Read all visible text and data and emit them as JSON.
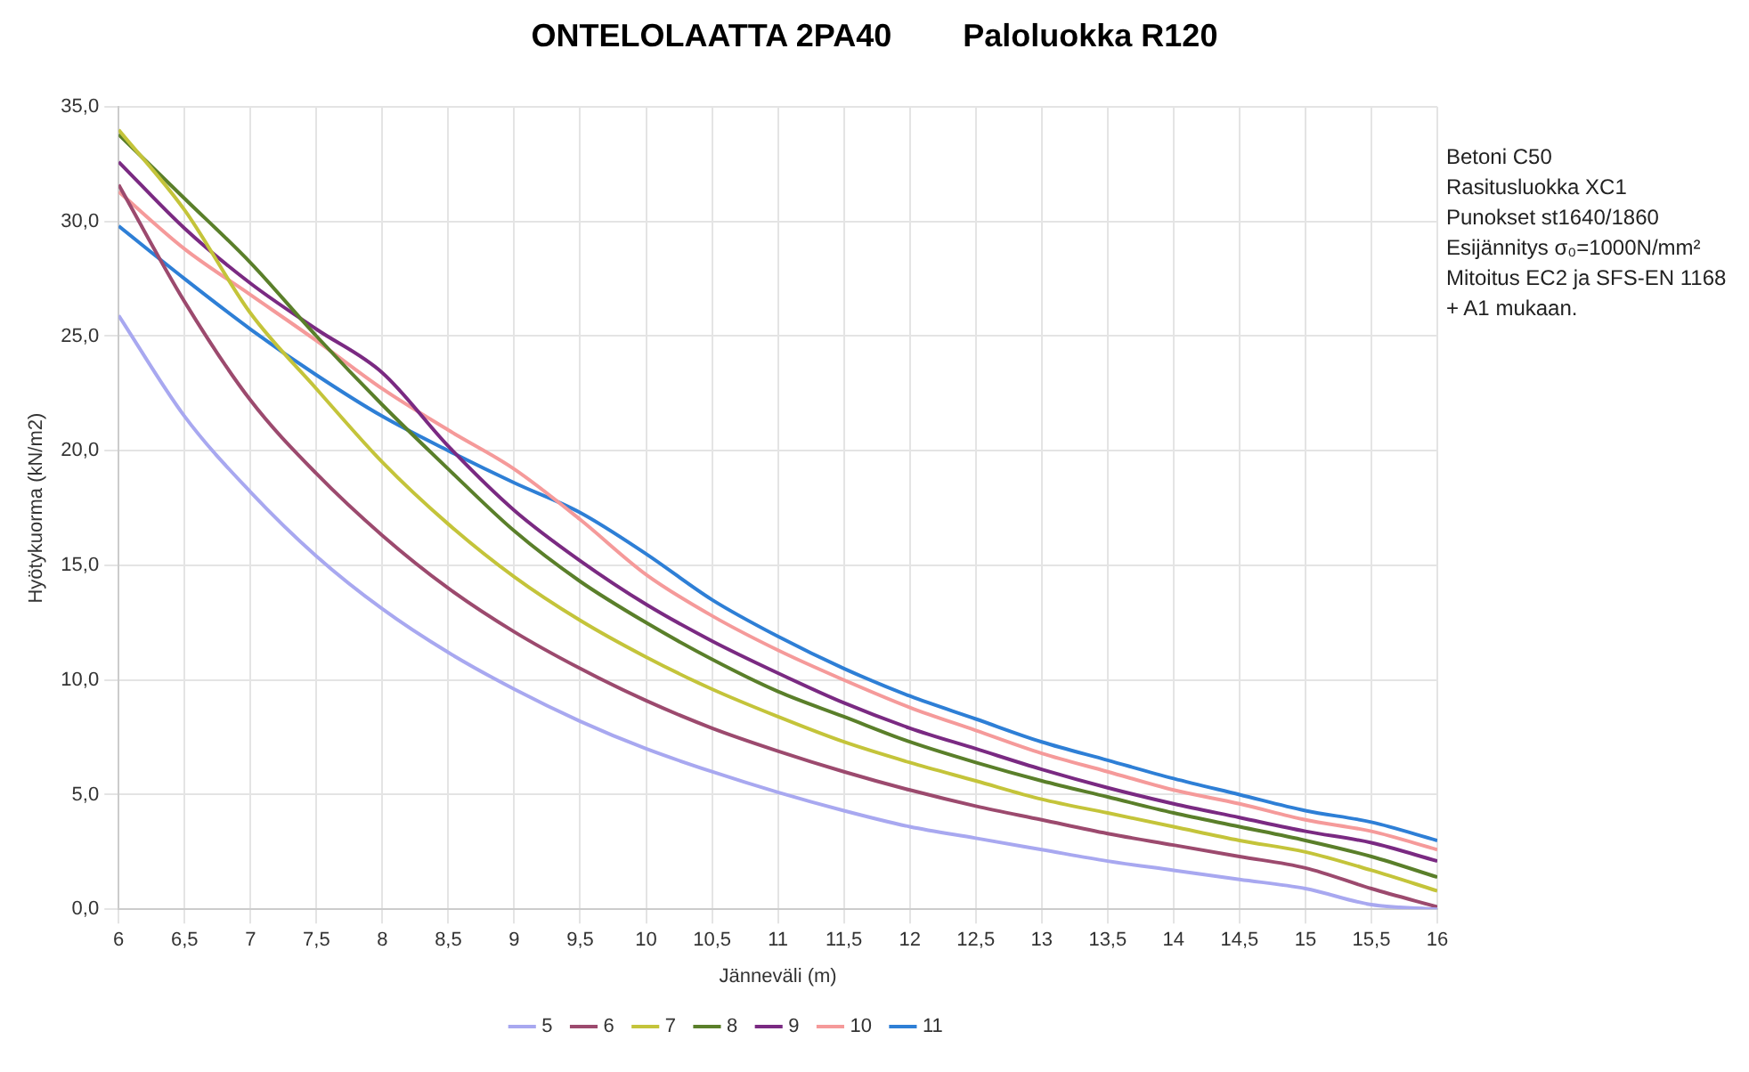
{
  "chart_data": {
    "type": "line",
    "title": "ONTELOLAATTA 2PA40        Paloluokka R120",
    "xlabel": "Jänneväli (m)",
    "ylabel": "Hyötykuorma (kN/m2)",
    "x": [
      6,
      6.5,
      7,
      7.5,
      8,
      8.5,
      9,
      9.5,
      10,
      10.5,
      11,
      11.5,
      12,
      12.5,
      13,
      13.5,
      14,
      14.5,
      15,
      15.5,
      16
    ],
    "series": [
      {
        "name": "5",
        "color": "#a8a8f0",
        "values": [
          25.9,
          21.5,
          18.2,
          15.4,
          13.1,
          11.2,
          9.6,
          8.2,
          7.0,
          6.0,
          5.1,
          4.3,
          3.6,
          3.1,
          2.6,
          2.1,
          1.7,
          1.3,
          0.9,
          0.2,
          0.0
        ]
      },
      {
        "name": "6",
        "color": "#9c4a6e",
        "values": [
          31.6,
          26.5,
          22.2,
          19.0,
          16.3,
          14.0,
          12.1,
          10.5,
          9.1,
          7.9,
          6.9,
          6.0,
          5.2,
          4.5,
          3.9,
          3.3,
          2.8,
          2.3,
          1.8,
          0.9,
          0.1
        ]
      },
      {
        "name": "7",
        "color": "#c4c43a",
        "values": [
          34.0,
          30.5,
          26.0,
          22.7,
          19.5,
          16.8,
          14.5,
          12.6,
          11.0,
          9.6,
          8.4,
          7.3,
          6.4,
          5.6,
          4.8,
          4.2,
          3.6,
          3.0,
          2.5,
          1.7,
          0.8
        ]
      },
      {
        "name": "8",
        "color": "#5a7f2a",
        "values": [
          33.8,
          31.0,
          28.2,
          25.0,
          22.0,
          19.2,
          16.5,
          14.3,
          12.5,
          10.9,
          9.5,
          8.4,
          7.3,
          6.4,
          5.6,
          4.9,
          4.2,
          3.6,
          3.0,
          2.3,
          1.4
        ]
      },
      {
        "name": "9",
        "color": "#7a2a82",
        "values": [
          32.6,
          29.7,
          27.3,
          25.3,
          23.4,
          20.2,
          17.4,
          15.2,
          13.3,
          11.7,
          10.3,
          9.0,
          7.9,
          7.0,
          6.1,
          5.3,
          4.6,
          4.0,
          3.4,
          2.9,
          2.1
        ]
      },
      {
        "name": "10",
        "color": "#f59a9a",
        "values": [
          31.3,
          28.8,
          26.8,
          24.8,
          22.7,
          20.9,
          19.2,
          17.0,
          14.6,
          12.8,
          11.3,
          10.0,
          8.8,
          7.8,
          6.8,
          6.0,
          5.2,
          4.6,
          3.9,
          3.4,
          2.6
        ]
      },
      {
        "name": "11",
        "color": "#2e7fd6",
        "values": [
          29.8,
          27.5,
          25.3,
          23.3,
          21.5,
          20.0,
          18.6,
          17.3,
          15.5,
          13.5,
          11.9,
          10.5,
          9.3,
          8.3,
          7.3,
          6.5,
          5.7,
          5.0,
          4.3,
          3.8,
          3.0
        ]
      }
    ],
    "xlim": [
      6,
      16
    ],
    "xticks": [
      6,
      {
        "value": 6.5,
        "label": "6,5"
      },
      7,
      {
        "value": 7.5,
        "label": "7,5"
      },
      8,
      {
        "value": 8.5,
        "label": "8,5"
      },
      9,
      {
        "value": 9.5,
        "label": "9,5"
      },
      10,
      {
        "value": 10.5,
        "label": "10,5"
      },
      11,
      {
        "value": 11.5,
        "label": "11,5"
      },
      12,
      {
        "value": 12.5,
        "label": "12,5"
      },
      13,
      {
        "value": 13.5,
        "label": "13,5"
      },
      14,
      {
        "value": 14.5,
        "label": "14,5"
      },
      15,
      {
        "value": 15.5,
        "label": "15,5"
      },
      16
    ],
    "ylim": [
      0,
      35
    ],
    "yticks": [
      {
        "value": 0,
        "label": "0,0"
      },
      {
        "value": 5,
        "label": "5,0"
      },
      {
        "value": 10,
        "label": "10,0"
      },
      {
        "value": 15,
        "label": "15,0"
      },
      {
        "value": 20,
        "label": "20,0"
      },
      {
        "value": 25,
        "label": "25,0"
      },
      {
        "value": 30,
        "label": "30,0"
      },
      {
        "value": 35,
        "label": "35,0"
      }
    ],
    "annotations": [
      "Betoni C50",
      "Rasitusluokka XC1",
      "Punokset st1640/1860",
      "Esijännitys σ₀=1000N/mm²",
      "Mitoitus EC2 ja SFS-EN 1168",
      "+ A1 mukaan."
    ],
    "grid": true,
    "legend": "bottom",
    "marker": "none",
    "line_style": "solid"
  }
}
